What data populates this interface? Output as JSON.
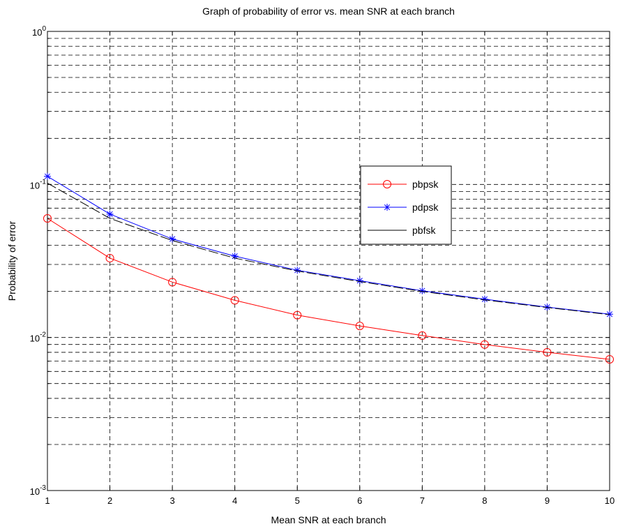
{
  "chart_data": {
    "type": "line",
    "title": "Graph of probability of error vs. mean SNR at each branch",
    "xlabel": "Mean SNR at each branch",
    "ylabel": "Probability of error",
    "x": [
      1,
      2,
      3,
      4,
      5,
      6,
      7,
      8,
      9,
      10
    ],
    "xlim": [
      1,
      10
    ],
    "ylim": [
      0.001,
      1
    ],
    "yscale": "log",
    "grid": true,
    "legend_position": "upper-right-center",
    "x_tick_labels": [
      "1",
      "2",
      "3",
      "4",
      "5",
      "6",
      "7",
      "8",
      "9",
      "10"
    ],
    "y_tick_labels": [
      {
        "base": "10",
        "exp": "-3"
      },
      {
        "base": "10",
        "exp": "-2"
      },
      {
        "base": "10",
        "exp": "-1"
      },
      {
        "base": "10",
        "exp": "0"
      }
    ],
    "series": [
      {
        "name": "pbpsk",
        "color": "#ff0000",
        "marker": "circle",
        "values": [
          0.06,
          0.033,
          0.023,
          0.0175,
          0.014,
          0.0119,
          0.0103,
          0.009,
          0.008,
          0.0072
        ]
      },
      {
        "name": "pdpsk",
        "color": "#0000ff",
        "marker": "star",
        "values": [
          0.113,
          0.064,
          0.044,
          0.034,
          0.0275,
          0.0235,
          0.0202,
          0.0178,
          0.0158,
          0.0142
        ]
      },
      {
        "name": "pbfsk",
        "color": "#000000",
        "marker": "none",
        "dashed": true,
        "values": [
          0.102,
          0.06,
          0.043,
          0.033,
          0.0272,
          0.0232,
          0.02,
          0.0176,
          0.0157,
          0.0141
        ]
      }
    ]
  }
}
